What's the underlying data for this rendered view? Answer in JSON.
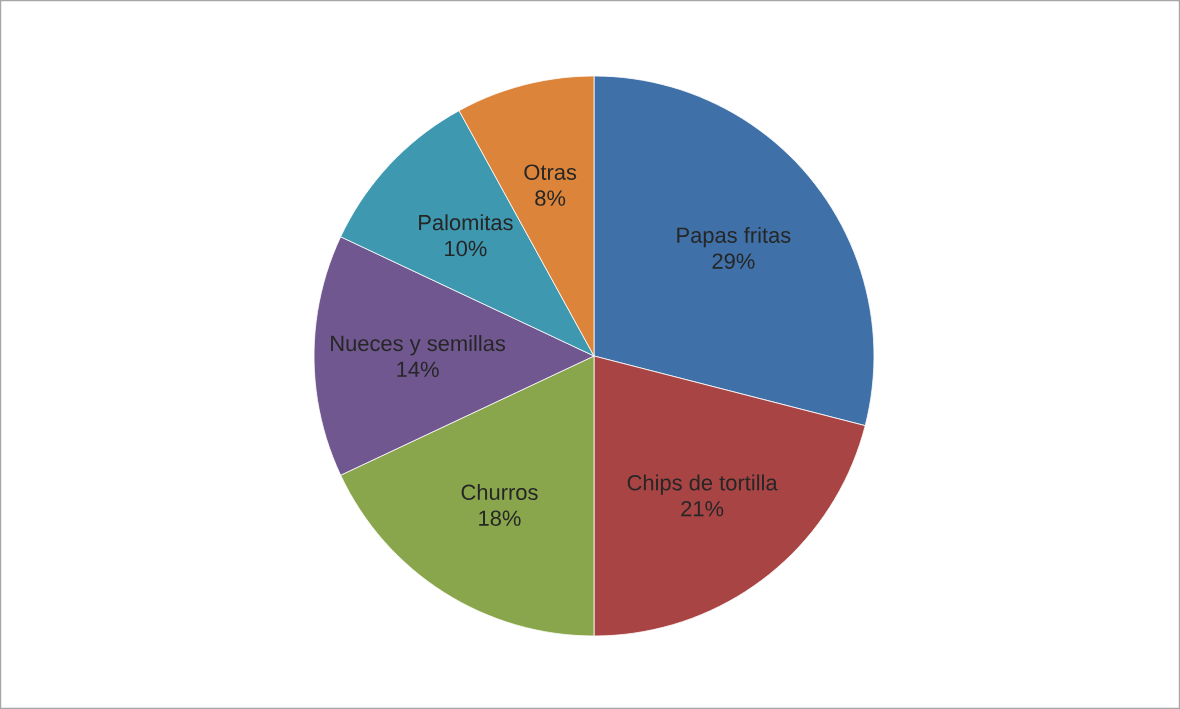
{
  "chart_data": {
    "type": "pie",
    "categories": [
      "Papas fritas",
      "Chips de tortilla",
      "Churros",
      "Nueces y semillas",
      "Palomitas",
      "Otras"
    ],
    "values": [
      29,
      21,
      18,
      14,
      10,
      8
    ],
    "colors": [
      "#3f70a8",
      "#a84443",
      "#89a64c",
      "#70578f",
      "#3e98b0",
      "#dc843a"
    ],
    "value_labels": [
      "29%",
      "21%",
      "18%",
      "14%",
      "10%",
      "8%"
    ]
  }
}
